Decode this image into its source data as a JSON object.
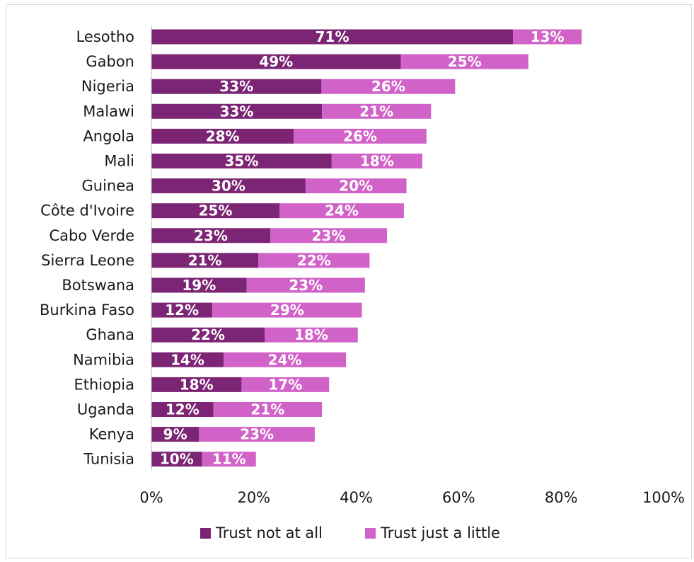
{
  "chart_data": {
    "type": "bar",
    "orientation": "horizontal",
    "stacked": true,
    "categories": [
      "Lesotho",
      "Gabon",
      "Nigeria",
      "Malawi",
      "Angola",
      "Mali",
      "Guinea",
      "Côte d'Ivoire",
      "Cabo Verde",
      "Sierra Leone",
      "Botswana",
      "Burkina Faso",
      "Ghana",
      "Namibia",
      "Ethiopia",
      "Uganda",
      "Kenya",
      "Tunisia"
    ],
    "series": [
      {
        "name": "Trust not at all",
        "color": "#7b2574",
        "values": [
          70.6,
          48.7,
          33.2,
          33.3,
          27.8,
          35.2,
          30.1,
          25.0,
          23.2,
          20.9,
          18.6,
          11.9,
          22.1,
          14.1,
          17.6,
          12.1,
          9.3,
          9.9
        ],
        "labels": [
          "71%",
          "49%",
          "33%",
          "33%",
          "28%",
          "35%",
          "30%",
          "25%",
          "23%",
          "21%",
          "19%",
          "12%",
          "22%",
          "14%",
          "18%",
          "12%",
          "9%",
          "10%"
        ]
      },
      {
        "name": "Trust just a little",
        "color": "#d163c8",
        "values": [
          13.4,
          24.9,
          26.1,
          21.3,
          25.9,
          17.7,
          19.7,
          24.3,
          22.8,
          21.7,
          23.1,
          29.2,
          18.2,
          23.9,
          17.1,
          21.2,
          22.6,
          10.5
        ],
        "labels": [
          "13%",
          "25%",
          "26%",
          "21%",
          "26%",
          "18%",
          "20%",
          "24%",
          "23%",
          "22%",
          "23%",
          "29%",
          "18%",
          "24%",
          "17%",
          "21%",
          "23%",
          "11%"
        ]
      }
    ],
    "xlim": [
      0,
      100
    ],
    "x_ticks": [
      0,
      20,
      40,
      60,
      80,
      100
    ],
    "x_tick_labels": [
      "0%",
      "20%",
      "40%",
      "60%",
      "80%",
      "100%"
    ],
    "title": "",
    "xlabel": "",
    "ylabel": "",
    "grid": false,
    "legend_position": "bottom"
  }
}
